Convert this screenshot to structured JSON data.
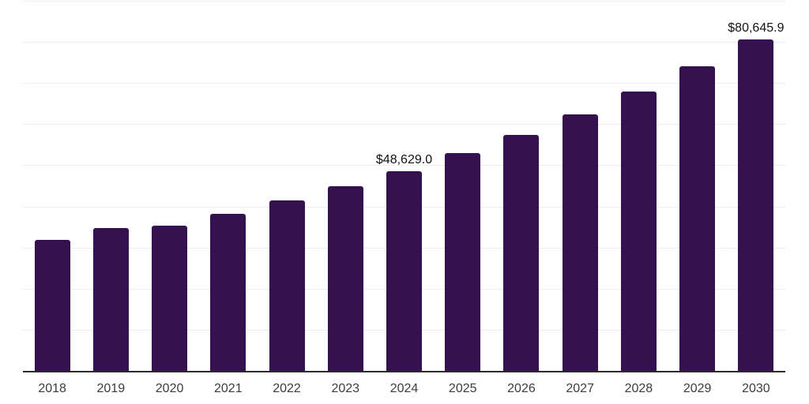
{
  "chart": {
    "background_color": "#ffffff",
    "bar_color": "#351150",
    "axis_line_color": "#2b2b2b",
    "gridline_color": "#ececec",
    "tick_label_color": "#3c3c3c",
    "value_label_color": "#111111"
  },
  "chart_data": {
    "type": "bar",
    "title": "",
    "xlabel": "",
    "ylabel": "",
    "categories": [
      "2018",
      "2019",
      "2020",
      "2021",
      "2022",
      "2023",
      "2024",
      "2025",
      "2026",
      "2027",
      "2028",
      "2029",
      "2030"
    ],
    "values": [
      31900,
      34700,
      35400,
      38200,
      41400,
      44900,
      48629.0,
      52900,
      57400,
      62300,
      68000,
      74100,
      80645.9
    ],
    "value_labels": {
      "2024": "$48,629.0",
      "2030": "$80,645.9"
    },
    "ylim": [
      0,
      90000
    ],
    "gridline_step": 10000,
    "grid": true,
    "legend": false,
    "y_axis_tick_labels_visible": false
  }
}
